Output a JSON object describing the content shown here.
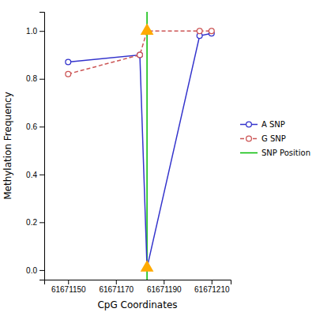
{
  "chart_data": {
    "type": "line",
    "xlabel": "CpG Coordinates",
    "ylabel": "Methylation Frequency",
    "series": [
      {
        "name": "A SNP",
        "color": "#3333cc",
        "marker": "circle",
        "line_style": "solid",
        "x": [
          61671150,
          61671180,
          61671183,
          61671205,
          61671210
        ],
        "values": [
          0.87,
          0.9,
          0.01,
          0.98,
          0.99
        ]
      },
      {
        "name": "G SNP",
        "color": "#cc5555",
        "marker": "circle",
        "line_style": "dashed",
        "x": [
          61671150,
          61671180,
          61671183,
          61671205,
          61671210
        ],
        "values": [
          0.82,
          0.9,
          1.0,
          1.0,
          1.0
        ]
      },
      {
        "name": "SNP Position",
        "type": "vline",
        "color": "#00bb00",
        "x": [
          61671183
        ]
      },
      {
        "type": "scatter",
        "color": "#ffaa00",
        "marker": "triangle",
        "x": [
          61671183,
          61671183
        ],
        "values": [
          1.0,
          0.01
        ]
      }
    ],
    "xlim": [
      61671140,
      61671218
    ],
    "ylim": [
      -0.04,
      1.08
    ],
    "xticks": [
      61671150,
      61671170,
      61671190,
      61671210
    ],
    "yticks": [
      {
        "value": 0.0,
        "label": "0.0"
      },
      0.2,
      0.4,
      0.6,
      0.8,
      {
        "value": 1.0,
        "label": "1.0"
      }
    ],
    "grid": false,
    "legend": "right"
  }
}
